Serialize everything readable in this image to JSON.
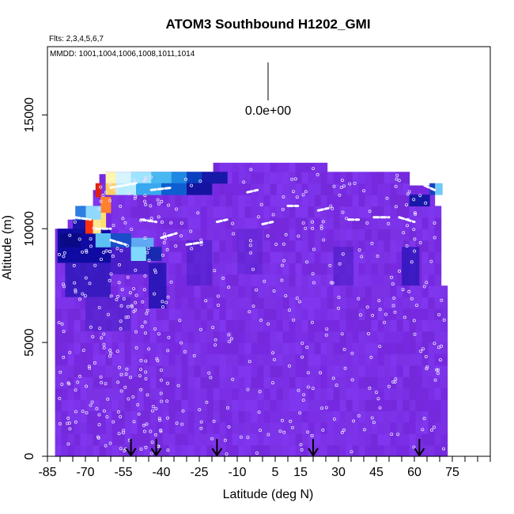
{
  "chart_data": {
    "type": "heatmap",
    "title": "ATOM3 Southbound H1202_GMI",
    "flights_label": "Flts: 2,3,4,5,6,7",
    "mmdd_label": "MMDD: 1001,1004,1006,1008,1011,1014",
    "scale_label": "0.0e+00",
    "xlabel": "Latitude (deg N)",
    "ylabel": "Altitude (m)",
    "xlim": [
      -85,
      90
    ],
    "ylim": [
      0,
      18000
    ],
    "x_tick_labels": [
      "-85",
      "-70",
      "-55",
      "-40",
      "-25",
      "-10",
      "5",
      "15",
      "30",
      "45",
      "60",
      "75"
    ],
    "x_tick_values": [
      -85,
      -70,
      -55,
      -40,
      -25,
      -10,
      5,
      15,
      30,
      45,
      60,
      75
    ],
    "y_tick_labels": [
      "0",
      "5000",
      "10000",
      "15000"
    ],
    "y_tick_values": [
      0,
      5000,
      10000,
      15000
    ],
    "arrows_lat": [
      -52,
      -42,
      -18,
      20,
      62
    ],
    "colors": {
      "background_field": "#7a2fe6",
      "dark_band": "#1010a0",
      "light_band": "#7fd8ff",
      "hot": "#ff3010",
      "points": "#e8e0ff"
    }
  }
}
